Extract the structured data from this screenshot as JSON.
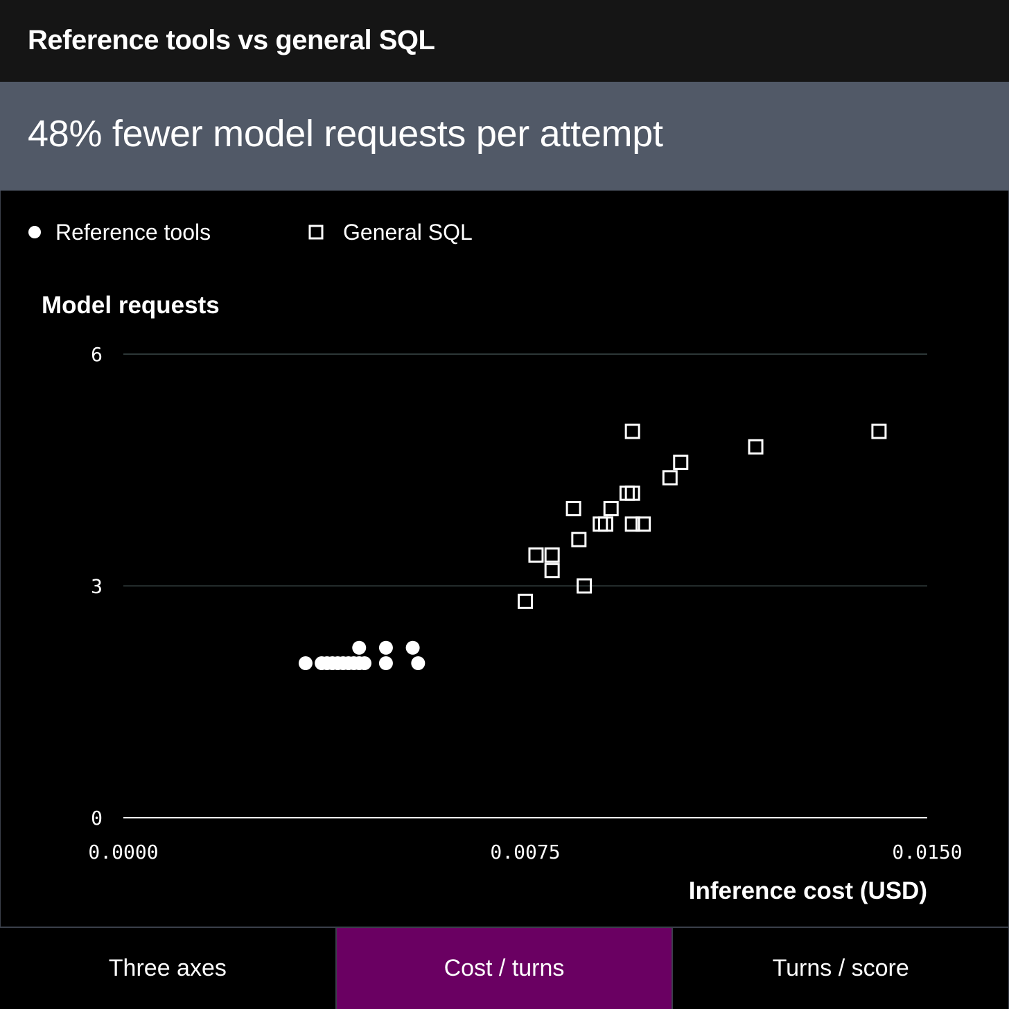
{
  "header": {
    "title": "Reference tools vs general SQL"
  },
  "headline": {
    "text": "48% fewer model requests per attempt"
  },
  "colors": {
    "accent_tab": "#6a0062",
    "headline_band": "#515967",
    "grid": "#3c4a4a"
  },
  "tabs": [
    {
      "label": "Three axes",
      "active": false
    },
    {
      "label": "Cost / turns",
      "active": true
    },
    {
      "label": "Turns / score",
      "active": false
    }
  ],
  "chart_data": {
    "type": "scatter",
    "xlabel": "Inference cost (USD)",
    "ylabel": "Model requests",
    "xlim": [
      0,
      0.015
    ],
    "ylim": [
      0,
      6
    ],
    "x_ticks": [
      "0.0000",
      "0.0075",
      "0.0150"
    ],
    "y_ticks": [
      "0",
      "3",
      "6"
    ],
    "grid": true,
    "legend": "top-left",
    "series": [
      {
        "name": "Reference tools",
        "marker": "filled-circle",
        "points": [
          {
            "x": 0.0034,
            "y": 2.0
          },
          {
            "x": 0.0037,
            "y": 2.0
          },
          {
            "x": 0.0038,
            "y": 2.0
          },
          {
            "x": 0.0039,
            "y": 2.0
          },
          {
            "x": 0.004,
            "y": 2.0
          },
          {
            "x": 0.0041,
            "y": 2.0
          },
          {
            "x": 0.0042,
            "y": 2.0
          },
          {
            "x": 0.0043,
            "y": 2.0
          },
          {
            "x": 0.0044,
            "y": 2.2
          },
          {
            "x": 0.0044,
            "y": 2.0
          },
          {
            "x": 0.0045,
            "y": 2.0
          },
          {
            "x": 0.0049,
            "y": 2.2
          },
          {
            "x": 0.0049,
            "y": 2.0
          },
          {
            "x": 0.0054,
            "y": 2.2
          },
          {
            "x": 0.0055,
            "y": 2.0
          }
        ]
      },
      {
        "name": "General SQL",
        "marker": "open-square",
        "points": [
          {
            "x": 0.0075,
            "y": 2.8
          },
          {
            "x": 0.0077,
            "y": 3.4
          },
          {
            "x": 0.008,
            "y": 3.4
          },
          {
            "x": 0.008,
            "y": 3.2
          },
          {
            "x": 0.0084,
            "y": 4.0
          },
          {
            "x": 0.0085,
            "y": 3.6
          },
          {
            "x": 0.0086,
            "y": 3.0
          },
          {
            "x": 0.0089,
            "y": 3.8
          },
          {
            "x": 0.009,
            "y": 3.8
          },
          {
            "x": 0.0091,
            "y": 4.0
          },
          {
            "x": 0.0094,
            "y": 4.2
          },
          {
            "x": 0.0095,
            "y": 4.2
          },
          {
            "x": 0.0095,
            "y": 3.8
          },
          {
            "x": 0.0095,
            "y": 5.0
          },
          {
            "x": 0.0097,
            "y": 3.8
          },
          {
            "x": 0.0102,
            "y": 4.4
          },
          {
            "x": 0.0104,
            "y": 4.6
          },
          {
            "x": 0.0118,
            "y": 4.8
          },
          {
            "x": 0.0141,
            "y": 5.0
          }
        ]
      }
    ]
  }
}
